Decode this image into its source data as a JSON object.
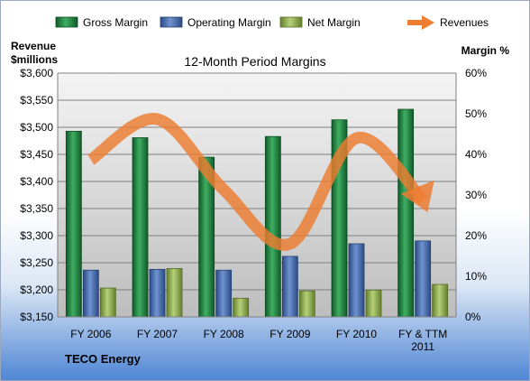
{
  "chart_data": {
    "type": "bar",
    "title": "12-Month Period Margins",
    "company": "TECO Energy",
    "categories": [
      [
        "FY 2006"
      ],
      [
        "FY 2007"
      ],
      [
        "FY 2008"
      ],
      [
        "FY 2009"
      ],
      [
        "FY 2010"
      ],
      [
        "FY & TTM",
        "2011"
      ]
    ],
    "y_left": {
      "label": [
        "Revenue",
        "$millions"
      ],
      "lim": [
        3150,
        3600
      ],
      "ticks": [
        3150,
        3200,
        3250,
        3300,
        3350,
        3400,
        3450,
        3500,
        3550,
        3600
      ],
      "tick_labels": [
        "$3,150",
        "$3,200",
        "$3,250",
        "$3,300",
        "$3,350",
        "$3,400",
        "$3,450",
        "$3,500",
        "$3,550",
        "$3,600"
      ]
    },
    "y_right": {
      "label": "Margin %",
      "lim": [
        0,
        60
      ],
      "ticks": [
        0,
        10,
        20,
        30,
        40,
        50,
        60
      ],
      "tick_labels": [
        "0%",
        "10%",
        "20%",
        "30%",
        "40%",
        "50%",
        "60%"
      ]
    },
    "series": [
      {
        "name": "Gross Margin",
        "axis": "right",
        "kind": "bar",
        "color": "#1f7a3c",
        "values": [
          45.7,
          44.1,
          39.3,
          44.4,
          48.5,
          51.1
        ]
      },
      {
        "name": "Operating Margin",
        "axis": "right",
        "kind": "bar",
        "color": "#3a5f9f",
        "values": [
          11.5,
          11.7,
          11.5,
          14.9,
          18.0,
          18.7
        ]
      },
      {
        "name": "Net Margin",
        "axis": "right",
        "kind": "bar",
        "color": "#8caa4a",
        "values": [
          7.1,
          11.9,
          4.6,
          6.4,
          6.6,
          8.0
        ]
      },
      {
        "name": "Revenues",
        "axis": "left",
        "kind": "line",
        "color": "#ed7d31",
        "values": [
          3440,
          3515,
          3385,
          3285,
          3480,
          3365
        ]
      }
    ],
    "grid": true,
    "legend": "top"
  }
}
